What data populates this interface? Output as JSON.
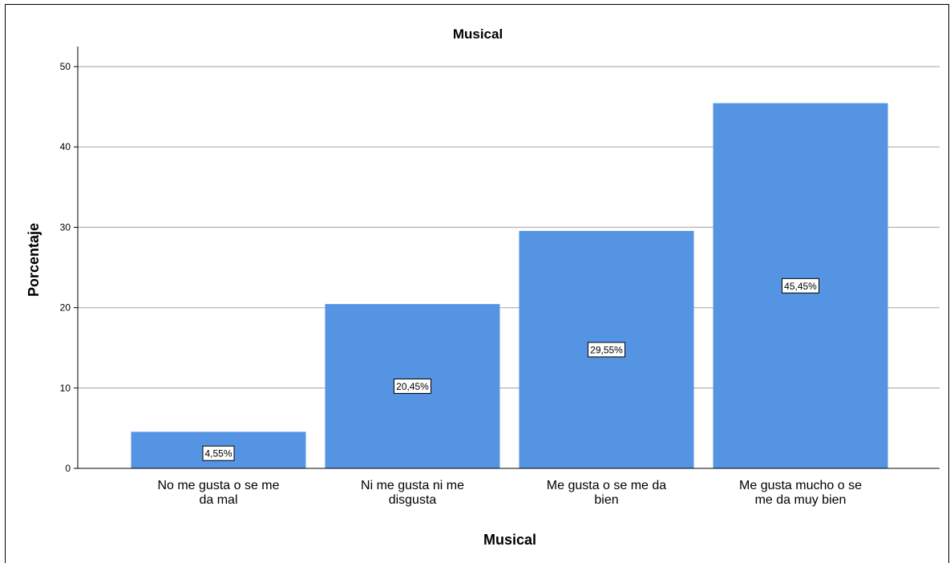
{
  "chart_data": {
    "type": "bar",
    "title": "Musical",
    "xlabel": "Musical",
    "ylabel": "Porcentaje",
    "categories": [
      [
        "No me gusta o se me",
        "da mal"
      ],
      [
        "Ni me gusta ni me",
        "disgusta"
      ],
      [
        "Me gusta o se me da",
        "bien"
      ],
      [
        "Me gusta mucho o se",
        "me da muy bien"
      ]
    ],
    "values": [
      4.55,
      20.45,
      29.55,
      45.45
    ],
    "data_labels": [
      "4,55%",
      "20,45%",
      "29,55%",
      "45,45%"
    ],
    "yticks": [
      0,
      10,
      20,
      30,
      40,
      50
    ],
    "ylim": [
      0,
      52.5
    ],
    "grid": true,
    "bar_color": "#5594E2",
    "grid_color": "#B7B7B7"
  }
}
